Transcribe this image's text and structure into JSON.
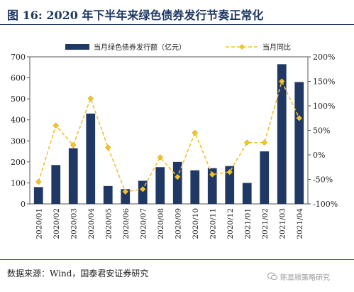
{
  "figure": {
    "title": "图 16:  2020 年下半年来绿色债券发行节奏正常化",
    "source": "数据来源：Wind，国泰君安证券研究",
    "watermark": "陈显顺策略研究"
  },
  "chart_data": {
    "type": "bar+line",
    "categories": [
      "2020/01",
      "2020/02",
      "2020/03",
      "2020/04",
      "2020/05",
      "2020/06",
      "2020/07",
      "2020/08",
      "2020/09",
      "2020/10",
      "2020/11",
      "2020/12",
      "2021/01",
      "2021/02",
      "2021/03",
      "2021/04"
    ],
    "series": [
      {
        "name": "当月绿色债券发行额（亿元）",
        "type": "bar",
        "axis": "left",
        "color": "#1f3864",
        "values": [
          80,
          185,
          265,
          430,
          85,
          70,
          110,
          175,
          200,
          160,
          170,
          180,
          100,
          250,
          665,
          580
        ]
      },
      {
        "name": "当月同比",
        "type": "line",
        "axis": "right",
        "color": "#f2c12e",
        "values": [
          -55,
          60,
          20,
          115,
          15,
          -75,
          -70,
          -5,
          -45,
          45,
          -40,
          -35,
          25,
          25,
          150,
          75
        ]
      }
    ],
    "left_axis": {
      "ylim": [
        0,
        700
      ],
      "ticks": [
        0,
        100,
        200,
        300,
        400,
        500,
        600,
        700
      ]
    },
    "right_axis": {
      "ylim": [
        -100,
        200
      ],
      "ticks": [
        "-100%",
        "-50%",
        "0%",
        "50%",
        "100%",
        "150%",
        "200%"
      ]
    },
    "legend": "top-center",
    "grid": false
  }
}
